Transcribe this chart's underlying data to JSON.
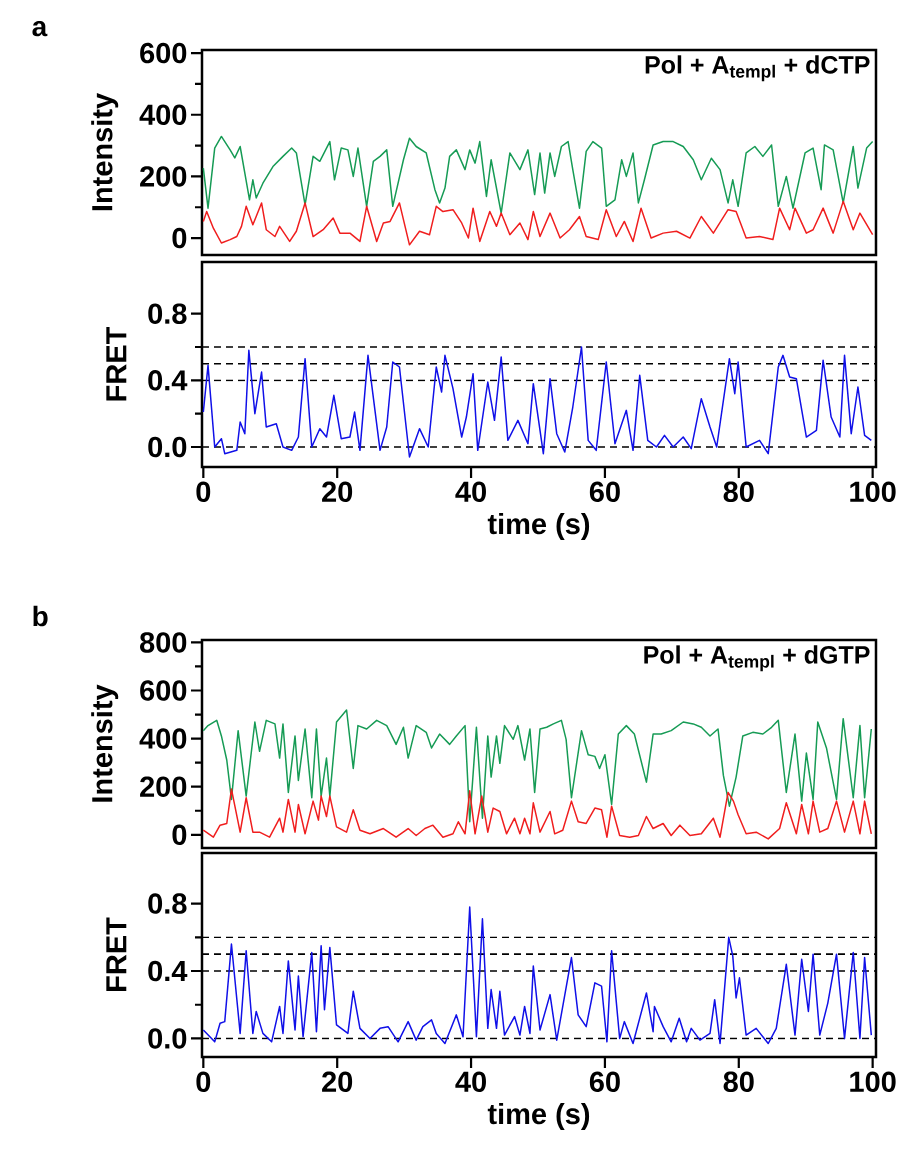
{
  "chart_data": [
    {
      "type": "line",
      "title": "a",
      "ylabel": "Intensity",
      "annotations": [
        "Pol + A$_{templ}$ + dCTP"
      ],
      "xlim": [
        -0.2,
        100.5
      ],
      "ylim": [
        -55,
        610
      ],
      "yticks": [
        0,
        200,
        400,
        600
      ],
      "tick_labels": "y",
      "series": [
        {
          "color": "#169b55",
          "x": [
            0,
            0.7,
            1.7,
            2.7,
            4.0,
            4.7,
            5.5,
            6.2,
            6.9,
            7.4,
            7.9,
            8.9,
            10.4,
            11.9,
            13.2,
            13.9,
            15.2,
            16.4,
            17.4,
            18.9,
            19.6,
            20.6,
            21.6,
            22.4,
            23.1,
            24.4,
            25.4,
            26.4,
            27.4,
            28.3,
            29.9,
            30.8,
            31.8,
            33.3,
            34.6,
            35.3,
            36.1,
            36.8,
            37.8,
            39.1,
            39.8,
            40.6,
            41.3,
            42.3,
            43.0,
            44.5,
            45.8,
            47.3,
            48.5,
            49.5,
            50.3,
            51.0,
            51.8,
            52.5,
            53.5,
            54.5,
            55.2,
            56.2,
            57.2,
            58.2,
            59.5,
            60.2,
            61.5,
            62.5,
            63.2,
            64.2,
            65.0,
            65.9,
            67.2,
            68.7,
            70.2,
            71.7,
            73.2,
            74.4,
            75.9,
            77.2,
            78.4,
            79.1,
            79.9,
            81.1,
            82.4,
            83.6,
            84.9,
            85.9,
            87.1,
            88.1,
            89.9,
            91.1,
            92.3,
            92.8,
            94.1,
            95.6,
            97.1,
            97.8,
            99.1,
            100
          ],
          "values": [
            227,
            97,
            292,
            330,
            286,
            260,
            297,
            211,
            124,
            189,
            130,
            178,
            232,
            265,
            292,
            276,
            108,
            265,
            249,
            313,
            189,
            292,
            286,
            200,
            292,
            103,
            249,
            265,
            286,
            103,
            254,
            324,
            297,
            276,
            157,
            114,
            162,
            265,
            286,
            222,
            286,
            243,
            313,
            135,
            254,
            81,
            276,
            222,
            286,
            141,
            276,
            146,
            276,
            200,
            297,
            313,
            222,
            97,
            281,
            313,
            292,
            103,
            124,
            254,
            200,
            276,
            114,
            189,
            302,
            313,
            313,
            297,
            254,
            189,
            259,
            222,
            114,
            189,
            103,
            276,
            297,
            265,
            302,
            103,
            200,
            97,
            276,
            292,
            157,
            302,
            286,
            114,
            297,
            162,
            292,
            313
          ]
        },
        {
          "color": "#f01e1e",
          "x": [
            0,
            0.5,
            1.5,
            2.7,
            4.0,
            5.0,
            5.7,
            6.4,
            7.4,
            8.7,
            9.4,
            10.7,
            11.4,
            12.9,
            13.9,
            15.2,
            16.4,
            17.9,
            19.4,
            20.4,
            21.9,
            23.4,
            24.4,
            25.9,
            26.9,
            27.9,
            29.3,
            30.8,
            32.3,
            33.8,
            34.8,
            35.8,
            37.3,
            38.6,
            39.6,
            40.3,
            41.3,
            42.8,
            43.8,
            44.5,
            45.8,
            47.3,
            48.5,
            49.3,
            50.3,
            51.8,
            53.3,
            54.7,
            56.2,
            57.2,
            59.0,
            60.2,
            61.7,
            62.9,
            64.2,
            65.4,
            66.9,
            68.7,
            70.7,
            72.7,
            74.4,
            76.2,
            78.4,
            79.6,
            81.1,
            83.1,
            85.1,
            86.1,
            87.6,
            88.4,
            90.1,
            91.1,
            92.6,
            94.1,
            95.6,
            97.1,
            98.1,
            100
          ],
          "values": [
            54,
            86,
            32,
            -16,
            -5,
            5,
            38,
            103,
            43,
            114,
            27,
            5,
            38,
            -11,
            22,
            114,
            5,
            27,
            65,
            16,
            16,
            -11,
            103,
            -11,
            49,
            54,
            114,
            -22,
            22,
            11,
            103,
            86,
            92,
            49,
            0,
            97,
            -11,
            86,
            38,
            81,
            11,
            49,
            -5,
            86,
            5,
            81,
            0,
            27,
            70,
            5,
            -5,
            92,
            5,
            54,
            -11,
            97,
            0,
            16,
            22,
            0,
            70,
            16,
            92,
            86,
            0,
            5,
            -5,
            97,
            27,
            97,
            16,
            27,
            97,
            16,
            119,
            27,
            81,
            11
          ]
        }
      ]
    },
    {
      "type": "line",
      "ylabel": "FRET",
      "xlabel": "time (s)",
      "xlim": [
        -0.2,
        100.5
      ],
      "ylim": [
        -0.12,
        1.11
      ],
      "xticks": [
        0,
        20,
        40,
        60,
        80,
        100
      ],
      "yticks": [
        {
          "value": 0,
          "label": "0.0"
        },
        {
          "value": 0.4,
          "label": "0.4"
        },
        {
          "value": 0.8,
          "label": "0.8"
        }
      ],
      "ref_lines": [
        {
          "axis": "y",
          "value": 0,
          "color": "#000000",
          "line_style": "dashed"
        },
        {
          "axis": "y",
          "value": 0.4,
          "color": "#000000",
          "line_style": "dashed"
        },
        {
          "axis": "y",
          "value": 0.5,
          "color": "#000000",
          "line_style": "dashed"
        },
        {
          "axis": "y",
          "value": 0.6,
          "color": "#000000",
          "line_style": "dashed"
        }
      ],
      "series": [
        {
          "color": "#1010e8",
          "x": [
            0,
            0.7,
            1.7,
            2.7,
            3.2,
            5.0,
            5.5,
            6.2,
            6.8,
            7.7,
            8.7,
            9.4,
            10.9,
            11.9,
            13.2,
            14.2,
            15.2,
            16.2,
            17.4,
            18.4,
            19.5,
            20.6,
            21.9,
            22.6,
            23.4,
            24.6,
            26.4,
            27.4,
            28.3,
            29.3,
            30.8,
            32.3,
            33.6,
            34.8,
            35.6,
            36.1,
            37.3,
            38.6,
            39.3,
            40.3,
            41.0,
            42.5,
            43.5,
            44.5,
            45.5,
            47.0,
            48.5,
            49.3,
            50.8,
            51.8,
            52.8,
            54.0,
            55.2,
            56.5,
            57.5,
            58.7,
            60.2,
            61.5,
            63.2,
            64.2,
            65.2,
            66.4,
            67.7,
            68.9,
            70.2,
            71.7,
            72.9,
            74.4,
            75.7,
            76.7,
            78.6,
            79.4,
            79.9,
            81.1,
            83.1,
            84.4,
            85.9,
            86.6,
            87.6,
            88.6,
            90.1,
            91.6,
            92.6,
            93.8,
            95.1,
            95.8,
            96.8,
            97.8,
            98.8,
            99.8
          ],
          "values": [
            0.21,
            0.49,
            0.0,
            0.05,
            -0.04,
            -0.02,
            0.15,
            0.08,
            0.58,
            0.2,
            0.45,
            0.12,
            0.14,
            0.0,
            -0.02,
            0.06,
            0.53,
            0.0,
            0.11,
            0.06,
            0.31,
            0.05,
            0.06,
            0.21,
            -0.02,
            0.55,
            -0.02,
            0.12,
            0.51,
            0.48,
            -0.06,
            0.11,
            0.0,
            0.48,
            0.33,
            0.55,
            0.35,
            0.06,
            0.18,
            0.44,
            -0.02,
            0.39,
            0.16,
            0.54,
            0.04,
            0.16,
            0.02,
            0.38,
            -0.04,
            0.41,
            0.08,
            -0.03,
            0.24,
            0.6,
            0.04,
            -0.02,
            0.51,
            0.02,
            0.22,
            -0.02,
            0.43,
            0.04,
            0.0,
            0.07,
            0.0,
            0.06,
            -0.01,
            0.29,
            0.12,
            0.0,
            0.53,
            0.32,
            0.51,
            0.0,
            0.04,
            -0.04,
            0.48,
            0.55,
            0.42,
            0.41,
            0.06,
            0.1,
            0.52,
            0.18,
            0.06,
            0.55,
            0.08,
            0.36,
            0.07,
            0.04
          ]
        }
      ]
    },
    {
      "type": "line",
      "title": "b",
      "ylabel": "Intensity",
      "annotations": [
        "Pol + A$_{templ}$ + dGTP"
      ],
      "xlim": [
        -0.2,
        100.5
      ],
      "ylim": [
        -55,
        810
      ],
      "yticks": [
        0,
        200,
        400,
        600,
        800
      ],
      "tick_labels": "y",
      "series": [
        {
          "color": "#169b55",
          "x": [
            0,
            0.7,
            2.0,
            2.7,
            3.5,
            4.2,
            5.2,
            6.4,
            7.7,
            8.4,
            9.4,
            10.7,
            11.4,
            11.9,
            12.7,
            13.7,
            14.2,
            15.2,
            16.2,
            16.9,
            17.6,
            18.4,
            18.9,
            19.9,
            21.4,
            22.4,
            23.1,
            24.4,
            25.9,
            27.4,
            28.8,
            29.9,
            30.6,
            31.8,
            33.3,
            34.1,
            35.3,
            36.8,
            37.8,
            39.1,
            39.8,
            40.8,
            41.7,
            42.5,
            43.0,
            43.8,
            44.3,
            45.0,
            46.3,
            47.0,
            48.0,
            48.8,
            49.5,
            50.3,
            51.3,
            52.3,
            53.5,
            54.2,
            55.0,
            56.5,
            57.5,
            58.5,
            59.2,
            60.0,
            61.0,
            62.0,
            63.2,
            64.4,
            66.2,
            67.2,
            68.4,
            69.9,
            71.7,
            73.2,
            74.4,
            75.7,
            76.9,
            77.7,
            78.6,
            79.6,
            80.6,
            82.1,
            83.6,
            84.9,
            85.9,
            87.1,
            88.4,
            89.4,
            90.1,
            91.1,
            91.8,
            93.1,
            94.6,
            95.6,
            97.1,
            98.1,
            98.8,
            99.8
          ],
          "values": [
            433,
            454,
            476,
            411,
            311,
            147,
            433,
            161,
            469,
            347,
            476,
            461,
            319,
            461,
            176,
            411,
            226,
            440,
            154,
            440,
            161,
            319,
            161,
            469,
            519,
            276,
            454,
            440,
            476,
            454,
            376,
            447,
            319,
            454,
            426,
            361,
            419,
            376,
            411,
            454,
            54,
            447,
            69,
            411,
            240,
            411,
            297,
            454,
            397,
            454,
            311,
            440,
            176,
            440,
            447,
            461,
            476,
            397,
            154,
            433,
            333,
            326,
            276,
            333,
            126,
            419,
            454,
            419,
            219,
            419,
            419,
            433,
            469,
            461,
            447,
            411,
            440,
            247,
            119,
            240,
            411,
            426,
            419,
            447,
            476,
            176,
            419,
            140,
            340,
            147,
            469,
            361,
            147,
            483,
            154,
            454,
            154,
            440
          ]
        },
        {
          "color": "#f01e1e",
          "x": [
            0,
            1.5,
            2.5,
            3.5,
            4.2,
            5.5,
            6.4,
            7.4,
            8.4,
            9.9,
            11.4,
            11.9,
            12.7,
            13.7,
            14.2,
            15.2,
            16.4,
            17.2,
            17.6,
            18.4,
            18.9,
            19.9,
            21.4,
            22.4,
            23.4,
            24.9,
            26.9,
            28.8,
            30.6,
            31.8,
            33.1,
            34.3,
            35.8,
            37.3,
            38.1,
            39.1,
            39.8,
            40.6,
            41.6,
            42.5,
            43.3,
            44.3,
            45.3,
            46.5,
            47.3,
            48.0,
            48.8,
            49.3,
            50.3,
            51.8,
            52.5,
            53.7,
            55.0,
            56.0,
            57.2,
            58.5,
            59.5,
            60.3,
            61.0,
            62.2,
            63.7,
            65.0,
            66.2,
            67.2,
            68.7,
            69.9,
            71.2,
            72.7,
            74.4,
            76.2,
            77.2,
            78.4,
            79.2,
            79.9,
            81.1,
            82.6,
            84.4,
            86.1,
            87.1,
            88.6,
            89.4,
            90.4,
            91.1,
            92.1,
            93.3,
            94.6,
            95.8,
            97.1,
            98.1,
            98.8,
            99.8
          ],
          "values": [
            19,
            -10,
            40,
            47,
            190,
            11,
            154,
            11,
            11,
            -10,
            69,
            11,
            147,
            11,
            126,
            4,
            140,
            61,
            161,
            76,
            161,
            33,
            11,
            104,
            19,
            4,
            26,
            -10,
            26,
            -3,
            26,
            40,
            -10,
            4,
            54,
            4,
            183,
            4,
            161,
            11,
            111,
            97,
            4,
            69,
            4,
            69,
            4,
            133,
            11,
            97,
            4,
            19,
            140,
            54,
            47,
            111,
            104,
            -10,
            119,
            -3,
            -10,
            -3,
            76,
            26,
            47,
            -3,
            40,
            -3,
            4,
            69,
            -10,
            176,
            140,
            83,
            4,
            11,
            -17,
            26,
            133,
            4,
            126,
            4,
            140,
            11,
            26,
            140,
            11,
            140,
            4,
            140,
            4
          ]
        }
      ]
    },
    {
      "type": "line",
      "ylabel": "FRET",
      "xlabel": "time (s)",
      "xlim": [
        -0.2,
        100.5
      ],
      "ylim": [
        -0.11,
        1.1
      ],
      "xticks": [
        0,
        20,
        40,
        60,
        80,
        100
      ],
      "yticks": [
        {
          "value": 0,
          "label": "0.0"
        },
        {
          "value": 0.4,
          "label": "0.4"
        },
        {
          "value": 0.8,
          "label": "0.8"
        }
      ],
      "ref_lines": [
        {
          "axis": "y",
          "value": 0,
          "color": "#000000",
          "line_style": "dashed"
        },
        {
          "axis": "y",
          "value": 0.4,
          "color": "#000000",
          "line_style": "dashed"
        },
        {
          "axis": "y",
          "value": 0.5,
          "color": "#000000",
          "line_style": "dashed"
        },
        {
          "axis": "y",
          "value": 0.6,
          "color": "#000000",
          "line_style": "dashed"
        }
      ],
      "series": [
        {
          "color": "#1010e8",
          "x": [
            0,
            1.7,
            2.5,
            3.2,
            4.2,
            5.5,
            6.4,
            7.4,
            7.9,
            8.9,
            10.2,
            11.4,
            11.9,
            12.7,
            13.7,
            14.2,
            14.9,
            16.2,
            16.9,
            17.6,
            18.1,
            18.9,
            19.9,
            21.6,
            22.4,
            23.4,
            24.9,
            26.4,
            27.6,
            29.1,
            30.6,
            31.8,
            32.8,
            34.1,
            34.8,
            36.1,
            37.8,
            38.8,
            39.8,
            40.8,
            41.7,
            42.5,
            43.0,
            43.8,
            44.3,
            45.0,
            46.5,
            47.3,
            48.0,
            48.8,
            49.3,
            50.3,
            51.8,
            52.8,
            55.0,
            56.0,
            57.2,
            58.5,
            59.5,
            60.3,
            61.0,
            62.2,
            62.9,
            64.2,
            66.2,
            67.2,
            67.4,
            68.7,
            69.9,
            71.1,
            72.2,
            72.9,
            74.2,
            75.7,
            76.4,
            77.2,
            78.5,
            79.1,
            79.6,
            80.1,
            81.1,
            82.6,
            84.4,
            85.6,
            87.1,
            88.4,
            89.4,
            90.4,
            91.1,
            92.1,
            93.3,
            94.6,
            95.8,
            97.1,
            98.1,
            98.8,
            99.8
          ],
          "values": [
            0.05,
            -0.02,
            0.09,
            0.1,
            0.56,
            0.03,
            0.52,
            0.03,
            0.16,
            0.03,
            -0.02,
            0.19,
            0.03,
            0.46,
            0.05,
            0.37,
            0.01,
            0.51,
            0.04,
            0.55,
            0.17,
            0.54,
            0.08,
            0.03,
            0.28,
            0.06,
            0.0,
            0.06,
            0.07,
            -0.02,
            0.1,
            -0.01,
            0.07,
            0.11,
            0.03,
            -0.03,
            0.14,
            0.01,
            0.78,
            0.01,
            0.71,
            0.06,
            0.29,
            0.06,
            0.28,
            0.02,
            0.13,
            0.02,
            0.19,
            0.03,
            0.43,
            0.05,
            0.26,
            -0.01,
            0.48,
            0.14,
            0.07,
            0.33,
            0.31,
            -0.02,
            0.52,
            0.0,
            0.1,
            -0.03,
            0.27,
            0.04,
            0.19,
            0.07,
            -0.02,
            0.12,
            -0.02,
            0.06,
            -0.01,
            0.03,
            0.23,
            -0.03,
            0.6,
            0.49,
            0.24,
            0.36,
            0.02,
            0.06,
            -0.03,
            0.06,
            0.44,
            0.02,
            0.47,
            0.16,
            0.5,
            0.02,
            0.21,
            0.5,
            0.0,
            0.51,
            0.0,
            0.48,
            0.02
          ]
        }
      ]
    }
  ]
}
